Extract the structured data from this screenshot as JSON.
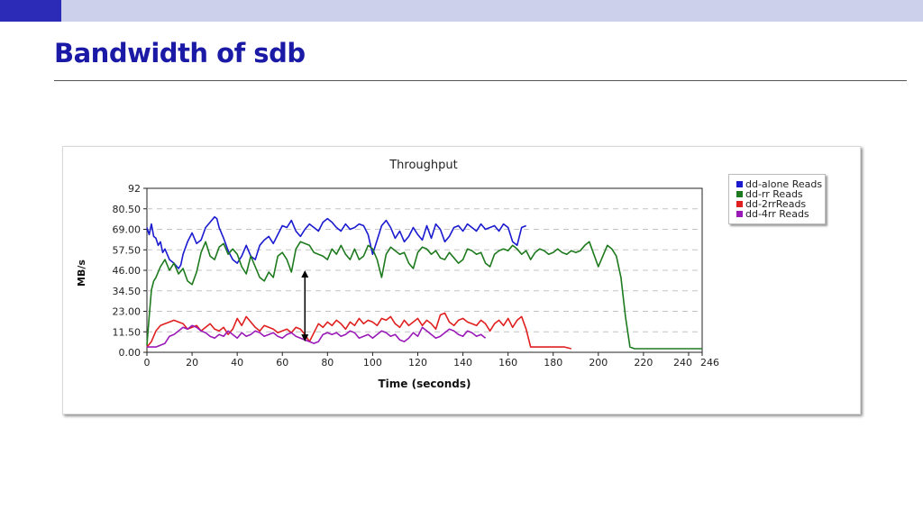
{
  "slide": {
    "title": "Bandwidth of sdb"
  },
  "colors": {
    "accent": "#2b2bb8",
    "title": "#1a1aa6",
    "band": "#cdd0ea"
  },
  "chart_data": {
    "type": "line",
    "title": "Throughput",
    "xlabel": "Time (seconds)",
    "ylabel": "MB/s",
    "xlim": [
      0,
      246
    ],
    "ylim": [
      0,
      92
    ],
    "xticks": [
      0,
      20,
      40,
      60,
      80,
      100,
      120,
      140,
      160,
      180,
      200,
      220,
      240,
      246
    ],
    "yticks": [
      0.0,
      11.5,
      23.0,
      34.5,
      46.0,
      57.5,
      69.0,
      80.5,
      92
    ],
    "ytick_labels": [
      "0.00",
      "11.50",
      "23.00",
      "34.50",
      "46.00",
      "57.50",
      "69.00",
      "80.50",
      "92"
    ],
    "grid": true,
    "legend": "top-right, outside",
    "annotation": "double-headed arrow at t=70 between ~6 and ~46 MB/s",
    "series": [
      {
        "name": "dd-alone Reads",
        "color": "#1a1ad0",
        "x": [
          0,
          1,
          2,
          3,
          4,
          5,
          6,
          7,
          8,
          9,
          10,
          12,
          14,
          15,
          16,
          18,
          20,
          22,
          24,
          26,
          28,
          30,
          31,
          32,
          34,
          36,
          38,
          40,
          42,
          44,
          46,
          48,
          50,
          52,
          54,
          56,
          58,
          60,
          62,
          64,
          66,
          68,
          70,
          72,
          74,
          76,
          78,
          80,
          82,
          84,
          86,
          88,
          90,
          92,
          94,
          96,
          98,
          100,
          102,
          104,
          106,
          108,
          110,
          112,
          114,
          116,
          118,
          120,
          122,
          124,
          126,
          128,
          130,
          132,
          134,
          136,
          138,
          140,
          142,
          144,
          146,
          148,
          150,
          152,
          154,
          156,
          158,
          160,
          162,
          164,
          166,
          168
        ],
        "y": [
          70,
          66,
          72,
          65,
          64,
          60,
          62,
          56,
          58,
          55,
          52,
          50,
          47,
          49,
          55,
          62,
          67,
          61,
          63,
          70,
          73,
          76,
          75,
          70,
          64,
          57,
          52,
          50,
          54,
          60,
          54,
          52,
          60,
          63,
          65,
          61,
          66,
          71,
          70,
          74,
          68,
          65,
          69,
          72,
          70,
          68,
          73,
          75,
          73,
          70,
          68,
          72,
          69,
          70,
          72,
          71,
          66,
          55,
          63,
          71,
          74,
          70,
          64,
          68,
          62,
          65,
          70,
          66,
          63,
          71,
          64,
          72,
          69,
          62,
          65,
          70,
          71,
          68,
          72,
          70,
          68,
          72,
          69,
          70,
          71,
          68,
          72,
          70,
          62,
          60,
          70,
          71
        ]
      },
      {
        "name": "dd-rr Reads",
        "color": "#1e7a1e",
        "x": [
          0,
          1,
          2,
          3,
          4,
          6,
          8,
          10,
          12,
          14,
          16,
          18,
          20,
          22,
          24,
          26,
          28,
          30,
          32,
          34,
          36,
          38,
          40,
          42,
          44,
          46,
          48,
          50,
          52,
          54,
          56,
          58,
          60,
          62,
          64,
          66,
          68,
          70,
          72,
          74,
          76,
          78,
          80,
          82,
          84,
          86,
          88,
          90,
          92,
          94,
          96,
          98,
          100,
          102,
          104,
          106,
          108,
          110,
          112,
          114,
          116,
          118,
          120,
          122,
          124,
          126,
          128,
          130,
          132,
          134,
          136,
          138,
          140,
          142,
          144,
          146,
          148,
          150,
          152,
          154,
          156,
          158,
          160,
          162,
          164,
          166,
          168,
          170,
          172,
          174,
          176,
          178,
          180,
          182,
          184,
          186,
          188,
          190,
          192,
          194,
          196,
          198,
          200,
          202,
          204,
          206,
          208,
          210,
          212,
          214,
          216,
          218,
          220,
          240,
          246
        ],
        "y": [
          4,
          20,
          35,
          40,
          42,
          48,
          52,
          46,
          50,
          44,
          47,
          40,
          38,
          45,
          56,
          62,
          54,
          52,
          59,
          61,
          55,
          58,
          55,
          48,
          44,
          54,
          48,
          42,
          40,
          45,
          42,
          54,
          56,
          52,
          45,
          58,
          62,
          61,
          60,
          56,
          55,
          54,
          52,
          58,
          55,
          60,
          55,
          52,
          58,
          52,
          54,
          60,
          58,
          52,
          42,
          55,
          59,
          57,
          55,
          56,
          50,
          47,
          56,
          59,
          58,
          55,
          57,
          53,
          52,
          56,
          53,
          50,
          52,
          58,
          57,
          55,
          56,
          50,
          48,
          55,
          57,
          58,
          57,
          60,
          58,
          55,
          57,
          52,
          56,
          58,
          57,
          55,
          56,
          58,
          56,
          55,
          57,
          56,
          57,
          60,
          62,
          55,
          48,
          54,
          60,
          58,
          54,
          42,
          20,
          3,
          2,
          2,
          2,
          2,
          2
        ]
      },
      {
        "name": "dd-2rrReads",
        "color": "#e02020",
        "x": [
          0,
          2,
          4,
          6,
          8,
          10,
          12,
          14,
          16,
          18,
          20,
          22,
          24,
          26,
          28,
          30,
          32,
          34,
          36,
          38,
          40,
          42,
          44,
          46,
          48,
          50,
          52,
          54,
          56,
          58,
          60,
          62,
          64,
          66,
          68,
          70,
          72,
          74,
          76,
          78,
          80,
          82,
          84,
          86,
          88,
          90,
          92,
          94,
          96,
          98,
          100,
          102,
          104,
          106,
          108,
          110,
          112,
          114,
          116,
          118,
          120,
          122,
          124,
          126,
          128,
          130,
          132,
          134,
          136,
          138,
          140,
          142,
          144,
          146,
          148,
          150,
          152,
          154,
          156,
          158,
          160,
          162,
          164,
          166,
          168,
          170,
          175,
          180,
          185,
          188
        ],
        "y": [
          3,
          6,
          12,
          15,
          16,
          17,
          18,
          17,
          16,
          13,
          14,
          15,
          12,
          14,
          16,
          13,
          12,
          14,
          10,
          13,
          19,
          15,
          20,
          17,
          14,
          12,
          15,
          14,
          13,
          11,
          12,
          13,
          11,
          14,
          13,
          10,
          6,
          11,
          16,
          14,
          17,
          15,
          18,
          16,
          13,
          17,
          15,
          19,
          16,
          18,
          17,
          15,
          19,
          18,
          20,
          16,
          14,
          18,
          15,
          17,
          19,
          15,
          18,
          16,
          13,
          21,
          22,
          17,
          15,
          18,
          19,
          17,
          16,
          15,
          18,
          16,
          12,
          16,
          18,
          15,
          19,
          14,
          18,
          20,
          13,
          3,
          3,
          3,
          3,
          2
        ]
      },
      {
        "name": "dd-4rr Reads",
        "color": "#9a1ab8",
        "x": [
          0,
          4,
          8,
          10,
          12,
          14,
          16,
          18,
          20,
          22,
          24,
          26,
          28,
          30,
          32,
          34,
          36,
          38,
          40,
          42,
          44,
          46,
          48,
          50,
          52,
          54,
          56,
          58,
          60,
          62,
          64,
          66,
          68,
          70,
          72,
          74,
          76,
          78,
          80,
          82,
          84,
          86,
          88,
          90,
          92,
          94,
          96,
          98,
          100,
          102,
          104,
          106,
          108,
          110,
          112,
          114,
          116,
          118,
          120,
          122,
          124,
          126,
          128,
          130,
          132,
          134,
          136,
          138,
          140,
          142,
          144,
          146,
          148,
          150
        ],
        "y": [
          3,
          3,
          5,
          9,
          10,
          12,
          14,
          13,
          15,
          14,
          12,
          11,
          9,
          8,
          10,
          9,
          12,
          10,
          8,
          11,
          9,
          10,
          12,
          11,
          9,
          10,
          11,
          9,
          8,
          10,
          11,
          9,
          8,
          7,
          6,
          5,
          6,
          10,
          11,
          10,
          11,
          9,
          10,
          12,
          11,
          8,
          9,
          10,
          8,
          10,
          12,
          11,
          9,
          10,
          7,
          6,
          8,
          11,
          9,
          14,
          12,
          10,
          8,
          9,
          11,
          13,
          12,
          10,
          9,
          12,
          11,
          9,
          10,
          8
        ]
      }
    ]
  }
}
